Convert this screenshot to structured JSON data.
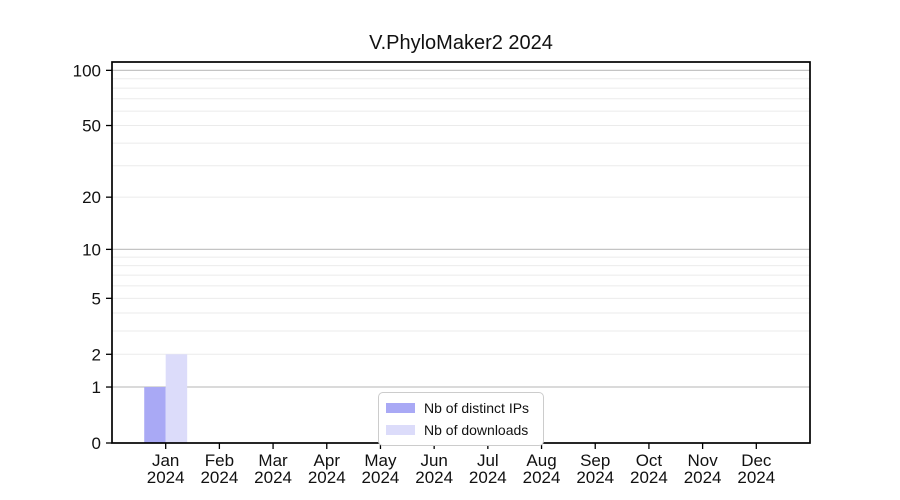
{
  "chart_data": {
    "type": "bar",
    "title": "V.PhyloMaker2 2024",
    "categories": [
      "Jan 2024",
      "Feb 2024",
      "Mar 2024",
      "Apr 2024",
      "May 2024",
      "Jun 2024",
      "Jul 2024",
      "Aug 2024",
      "Sep 2024",
      "Oct 2024",
      "Nov 2024",
      "Dec 2024"
    ],
    "month_labels": [
      "Jan",
      "Feb",
      "Mar",
      "Apr",
      "May",
      "Jun",
      "Jul",
      "Aug",
      "Sep",
      "Oct",
      "Nov",
      "Dec"
    ],
    "year_label": "2024",
    "series": [
      {
        "name": "Nb of distinct IPs",
        "color": "#a9a9f5",
        "values": [
          1,
          0,
          0,
          0,
          0,
          0,
          0,
          0,
          0,
          0,
          0,
          0
        ]
      },
      {
        "name": "Nb of downloads",
        "color": "#dcdcfa",
        "values": [
          2,
          0,
          0,
          0,
          0,
          0,
          0,
          0,
          0,
          0,
          0,
          0
        ]
      }
    ],
    "xlabel": "",
    "ylabel": "",
    "yscale": "log1p",
    "ytick_labels": [
      0,
      1,
      2,
      5,
      10,
      20,
      50,
      100
    ],
    "ylim": [
      0,
      111
    ],
    "grid": {
      "major_values": [
        1,
        10,
        100
      ],
      "minor_values": [
        2,
        3,
        4,
        5,
        6,
        7,
        8,
        9,
        20,
        30,
        40,
        50,
        60,
        70,
        80,
        90
      ],
      "major_color": "#c4c4c4",
      "minor_color": "#ebebeb"
    },
    "legend_position": "inside-bottom-center"
  },
  "colors": {
    "spine": "#000000",
    "background": "#ffffff",
    "legend_border": "#cccccc"
  }
}
